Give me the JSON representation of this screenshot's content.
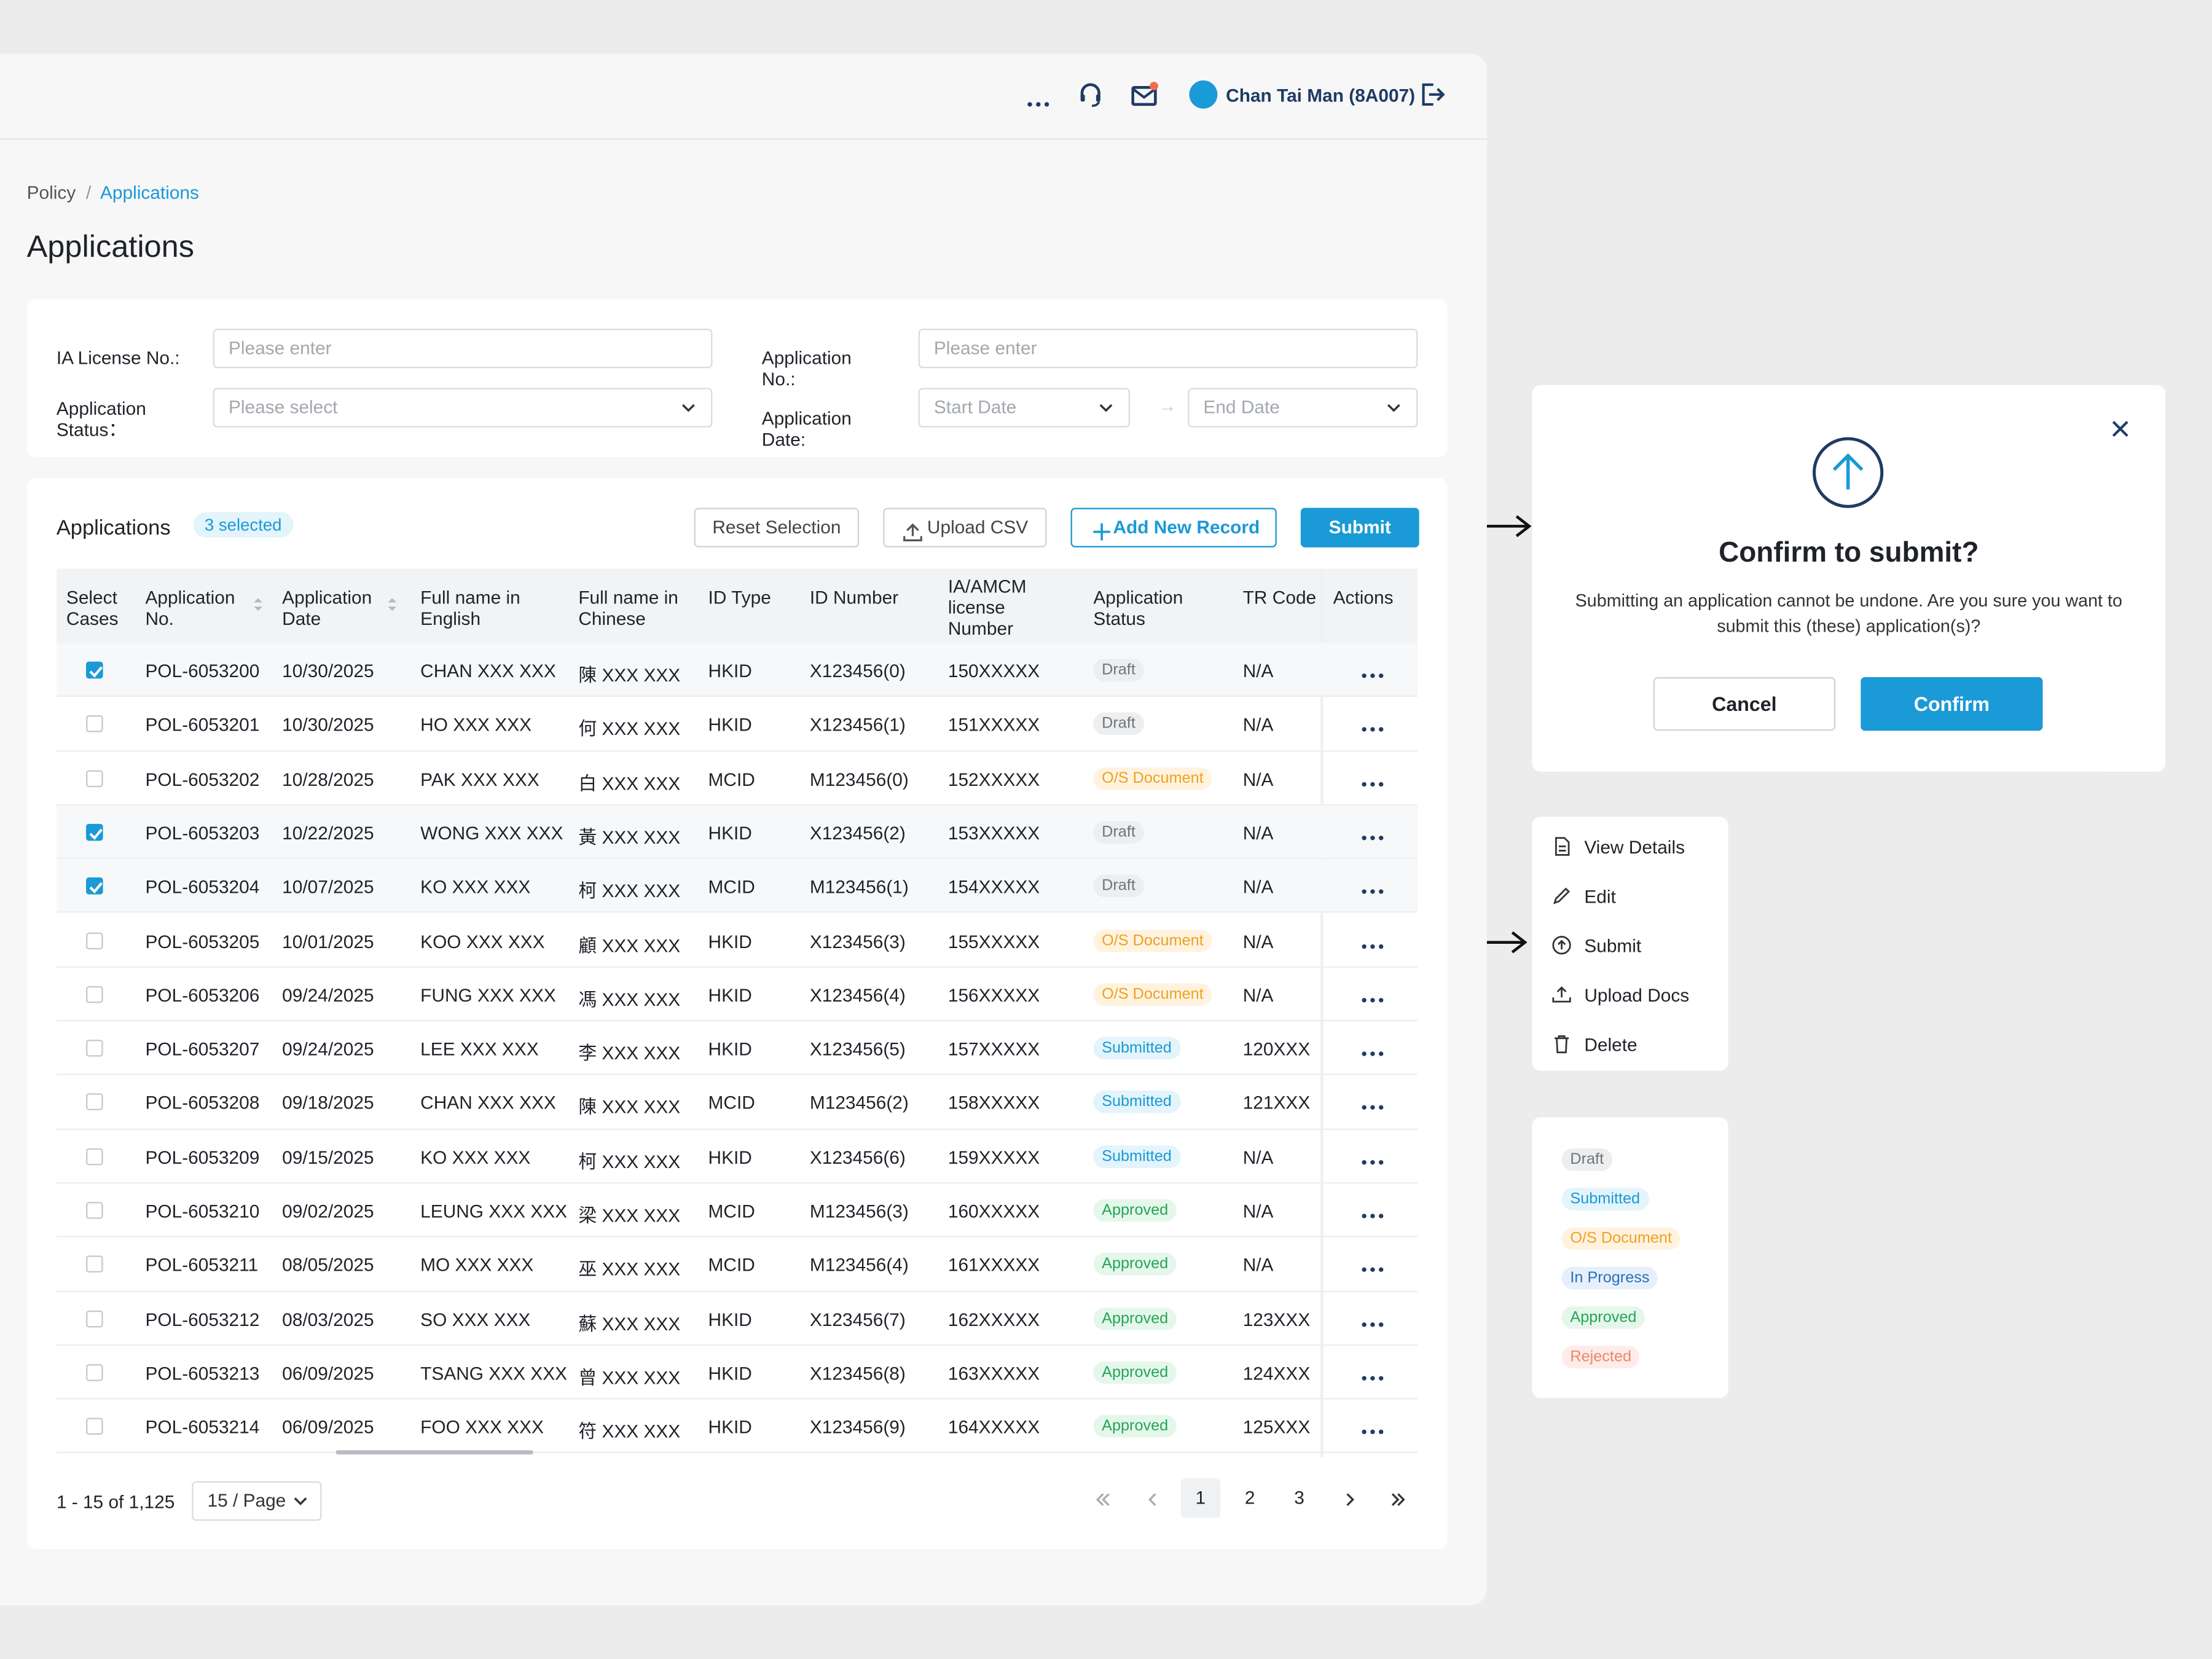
{
  "header": {
    "user": "Chan Tai Man (8A007)"
  },
  "breadcrumb": {
    "items": [
      "Policy",
      "Applications"
    ],
    "separator": "/"
  },
  "page_title": "Applications",
  "filters": [
    {
      "label": "IA License No.:",
      "placeholder": "Please enter"
    },
    {
      "label": "Application No.:",
      "placeholder": "Please enter"
    },
    {
      "label": "Application Status：",
      "placeholder": "Please select"
    },
    {
      "label": "Application Date:",
      "placeholder": "Start Date",
      "placeholder_end": "End Date"
    }
  ],
  "table_panel": {
    "title": "Applications",
    "selected_badge": "3 selected",
    "buttons": [
      "Reset Selection",
      "Upload CSV",
      "Add New Record",
      "Submit"
    ]
  },
  "table": {
    "columns": [
      "Select Cases",
      "Application No.",
      "Application Date",
      "Full name in English",
      "Full name in Chinese",
      "ID Type",
      "ID Number",
      "IA/AMCM license Number",
      "Application Status",
      "TR Code",
      "Actions"
    ],
    "rows": [
      {
        "selected": true,
        "cells": [
          "POL-6053200",
          "10/30/2025",
          "CHAN XXX XXX",
          "陳 XXX XXX",
          "HKID",
          "X123456(0)",
          "150XXXXX",
          "Draft",
          "N/A"
        ]
      },
      {
        "selected": false,
        "cells": [
          "POL-6053201",
          "10/30/2025",
          "HO XXX XXX",
          "何 XXX XXX",
          "HKID",
          "X123456(1)",
          "151XXXXX",
          "Draft",
          "N/A"
        ]
      },
      {
        "selected": false,
        "cells": [
          "POL-6053202",
          "10/28/2025",
          "PAK XXX XXX",
          "白 XXX XXX",
          "MCID",
          "M123456(0)",
          "152XXXXX",
          "O/S Document",
          "N/A"
        ]
      },
      {
        "selected": true,
        "cells": [
          "POL-6053203",
          "10/22/2025",
          "WONG XXX XXX",
          "黃 XXX XXX",
          "HKID",
          "X123456(2)",
          "153XXXXX",
          "Draft",
          "N/A"
        ]
      },
      {
        "selected": true,
        "cells": [
          "POL-6053204",
          "10/07/2025",
          "KO XXX XXX",
          "柯 XXX XXX",
          "MCID",
          "M123456(1)",
          "154XXXXX",
          "Draft",
          "N/A"
        ]
      },
      {
        "selected": false,
        "cells": [
          "POL-6053205",
          "10/01/2025",
          "KOO XXX XXX",
          "顧 XXX XXX",
          "HKID",
          "X123456(3)",
          "155XXXXX",
          "O/S Document",
          "N/A"
        ]
      },
      {
        "selected": false,
        "cells": [
          "POL-6053206",
          "09/24/2025",
          "FUNG XXX XXX",
          "馮 XXX XXX",
          "HKID",
          "X123456(4)",
          "156XXXXX",
          "O/S Document",
          "N/A"
        ]
      },
      {
        "selected": false,
        "cells": [
          "POL-6053207",
          "09/24/2025",
          "LEE XXX XXX",
          "李 XXX XXX",
          "HKID",
          "X123456(5)",
          "157XXXXX",
          "Submitted",
          "120XXX"
        ]
      },
      {
        "selected": false,
        "cells": [
          "POL-6053208",
          "09/18/2025",
          "CHAN XXX XXX",
          "陳 XXX XXX",
          "MCID",
          "M123456(2)",
          "158XXXXX",
          "Submitted",
          "121XXX"
        ]
      },
      {
        "selected": false,
        "cells": [
          "POL-6053209",
          "09/15/2025",
          "KO XXX XXX",
          "柯 XXX XXX",
          "HKID",
          "X123456(6)",
          "159XXXXX",
          "Submitted",
          "N/A"
        ]
      },
      {
        "selected": false,
        "cells": [
          "POL-6053210",
          "09/02/2025",
          "LEUNG XXX XXX",
          "梁 XXX XXX",
          "MCID",
          "M123456(3)",
          "160XXXXX",
          "Approved",
          "N/A"
        ]
      },
      {
        "selected": false,
        "cells": [
          "POL-6053211",
          "08/05/2025",
          "MO XXX XXX",
          "巫 XXX XXX",
          "MCID",
          "M123456(4)",
          "161XXXXX",
          "Approved",
          "N/A"
        ]
      },
      {
        "selected": false,
        "cells": [
          "POL-6053212",
          "08/03/2025",
          "SO XXX XXX",
          "蘇 XXX XXX",
          "HKID",
          "X123456(7)",
          "162XXXXX",
          "Approved",
          "123XXX"
        ]
      },
      {
        "selected": false,
        "cells": [
          "POL-6053213",
          "06/09/2025",
          "TSANG XXX XXX",
          "曾 XXX XXX",
          "HKID",
          "X123456(8)",
          "163XXXXX",
          "Approved",
          "124XXX"
        ]
      },
      {
        "selected": false,
        "cells": [
          "POL-6053214",
          "06/09/2025",
          "FOO XXX XXX",
          "符 XXX XXX",
          "HKID",
          "X123456(9)",
          "164XXXXX",
          "Approved",
          "125XXX"
        ]
      }
    ]
  },
  "pagination": {
    "range": "1 - 15 of 1,125",
    "page_size": "15 / Page",
    "pages": [
      1,
      2,
      3
    ],
    "current": 1
  },
  "dialog": {
    "title": "Confirm to submit?",
    "message": "Submitting an application cannot be undone. Are you sure you want to submit this (these) application(s)?",
    "cancel": "Cancel",
    "confirm": "Confirm"
  },
  "action_menu": [
    "View Details",
    "Edit",
    "Submit",
    "Upload Docs",
    "Delete"
  ],
  "status_legend": [
    "Draft",
    "Submitted",
    "O/S Document",
    "In Progress",
    "Approved",
    "Rejected"
  ]
}
